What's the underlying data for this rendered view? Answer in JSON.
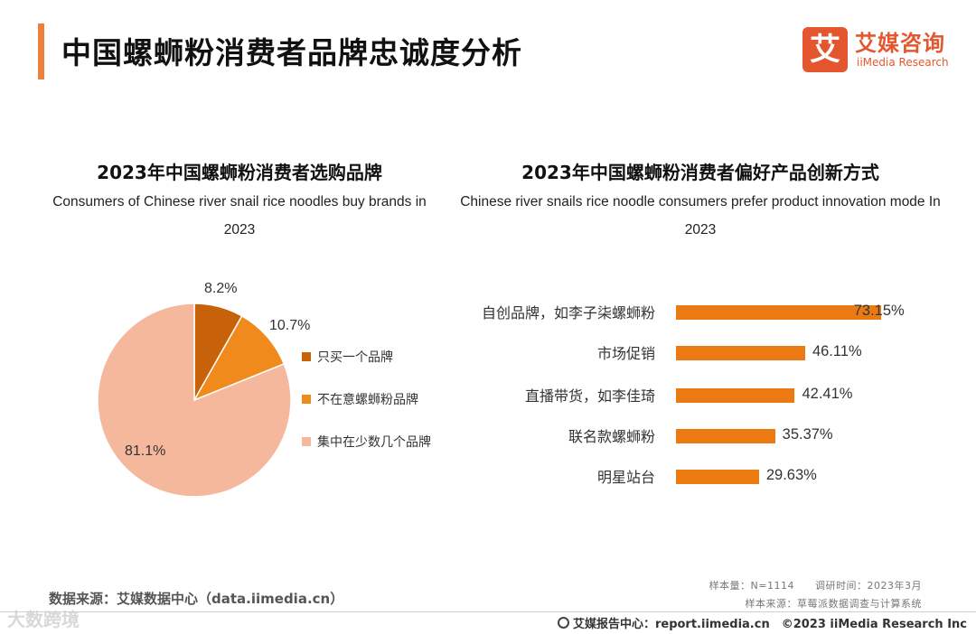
{
  "header": {
    "title": "中国螺蛳粉消费者品牌忠诚度分析",
    "logo_mark": "艾",
    "logo_cn": "艾媒咨询",
    "logo_en": "iiMedia Research"
  },
  "colors": {
    "accent": "#f07f3c",
    "brand": "#e4572e",
    "bar": "#ec7a12"
  },
  "chart_data": [
    {
      "type": "pie",
      "title": "2023年中国螺蛳粉消费者选购品牌",
      "subtitle": "Consumers of Chinese river  snail rice noodles buy brands in 2023",
      "slices": [
        {
          "label": "只买一个品牌",
          "value": 8.2,
          "display": "8.2%",
          "color": "#c8620a"
        },
        {
          "label": "不在意螺蛳粉品牌",
          "value": 10.7,
          "display": "10.7%",
          "color": "#f08a1c"
        },
        {
          "label": "集中在少数几个品牌",
          "value": 81.1,
          "display": "81.1%",
          "color": "#f5b89c"
        }
      ]
    },
    {
      "type": "bar",
      "orientation": "horizontal",
      "title": "2023年中国螺蛳粉消费者偏好产品创新方式",
      "subtitle": "Chinese river snails rice noodle consumers prefer product innovation mode In 2023",
      "categories": [
        "自创品牌，如李子柒螺蛳粉",
        "市场促销",
        "直播带货，如李佳琦",
        "联名款螺蛳粉",
        "明星站台"
      ],
      "values": [
        73.15,
        46.11,
        42.41,
        35.37,
        29.63
      ],
      "value_labels": [
        "73.15%",
        "46.11%",
        "42.41%",
        "35.37%",
        "29.63%"
      ],
      "unit": "%",
      "xlim": [
        0,
        100
      ]
    }
  ],
  "meta": {
    "sample_line": "样本量：N=1114　　调研时间：2023年3月",
    "sample_source": "样本来源：草莓派数据调查与计算系统",
    "data_source": "数据来源：艾媒数据中心（data.iimedia.cn）",
    "footer_text": "艾媒报告中心：report.iimedia.cn　©2023  iiMedia Research  Inc",
    "watermark": "大数跨境"
  }
}
